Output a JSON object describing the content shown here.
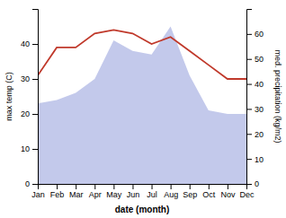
{
  "chart_data": {
    "type": "line",
    "xlabel": "date (month)",
    "ylabel": "max temp (C)",
    "y2label": "med. precipitation (kg/m2)",
    "categories": [
      "Jan",
      "Feb",
      "Mar",
      "Apr",
      "May",
      "Jun",
      "Jul",
      "Aug",
      "Sep",
      "Oct",
      "Nov",
      "Dec"
    ],
    "series": [
      {
        "type": "area",
        "color": "#b8c0e8",
        "values": [
          23,
          24,
          26,
          30,
          41,
          38,
          37,
          45,
          31,
          21,
          20,
          20
        ]
      },
      {
        "type": "line",
        "color": "#c0392b",
        "values": [
          31,
          39,
          39,
          43,
          44,
          43,
          40,
          42,
          38,
          34,
          30,
          30
        ]
      }
    ],
    "ylim": [
      0,
      50
    ],
    "yticks": [
      0,
      10,
      20,
      30,
      40
    ],
    "y2lim": [
      0,
      70
    ],
    "y2ticks": [
      0,
      10,
      20,
      30,
      40,
      50,
      60
    ],
    "grid": false
  }
}
